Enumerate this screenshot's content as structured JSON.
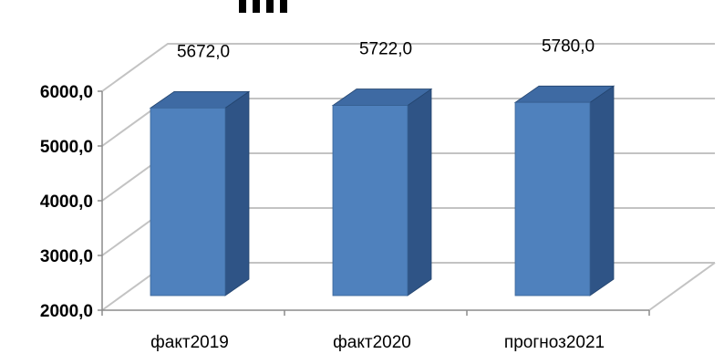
{
  "chart_data": {
    "type": "bar",
    "style": "3d-column",
    "categories": [
      "факт2019",
      "факт2020",
      "прогноз2021"
    ],
    "values": [
      5672.0,
      5722.0,
      5780.0
    ],
    "data_labels": [
      "5672,0",
      "5722,0",
      "5780,0"
    ],
    "y_ticks": [
      "2000,0",
      "3000,0",
      "4000,0",
      "5000,0",
      "6000,0"
    ],
    "ylim": [
      2000,
      6000
    ],
    "grid": true,
    "colors": {
      "front": "#4f81bd",
      "side": "#2f5486",
      "top": "#3e6aa3",
      "grid": "#c3c3c3"
    }
  }
}
